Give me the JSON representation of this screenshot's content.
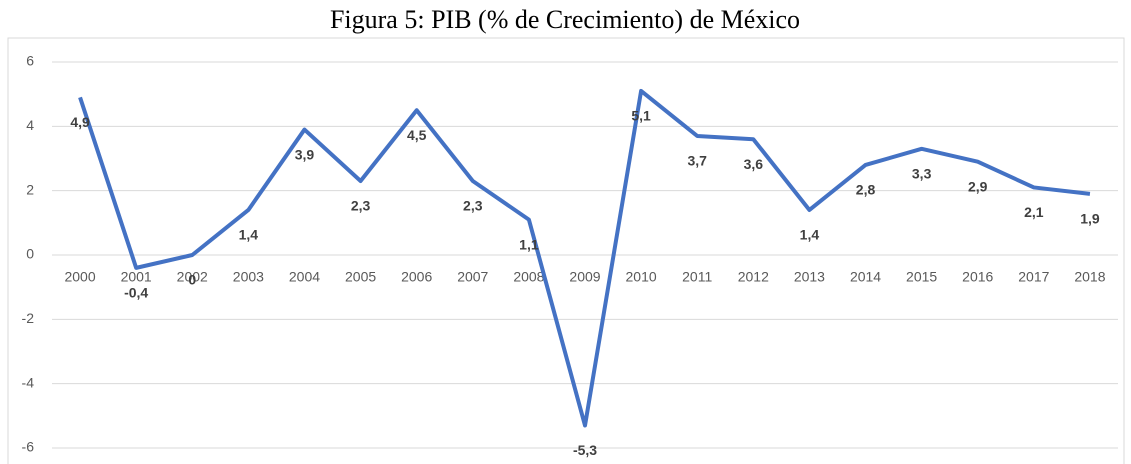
{
  "chart_data": {
    "type": "line",
    "title": "Figura 5: PIB (% de Crecimiento) de México",
    "categories": [
      "2000",
      "2001",
      "2002",
      "2003",
      "2004",
      "2005",
      "2006",
      "2007",
      "2008",
      "2009",
      "2010",
      "2011",
      "2012",
      "2013",
      "2014",
      "2015",
      "2016",
      "2017",
      "2018"
    ],
    "series": [
      {
        "name": "PIB",
        "color": "#4472c4",
        "values": [
          4.9,
          -0.4,
          0,
          1.4,
          3.9,
          2.3,
          4.5,
          2.3,
          1.1,
          -5.3,
          5.1,
          3.7,
          3.6,
          1.4,
          2.8,
          3.3,
          2.9,
          2.1,
          1.9
        ],
        "value_labels": [
          "4,9",
          "-0,4",
          "0",
          "1,4",
          "3,9",
          "2,3",
          "4,5",
          "2,3",
          "1,1",
          "-5,3",
          "5,1",
          "3,7",
          "3,6",
          "1,4",
          "2,8",
          "3,3",
          "2,9",
          "2,1",
          "1,9"
        ]
      }
    ],
    "ylim": [
      -6,
      6
    ],
    "yticks": [
      6,
      4,
      2,
      0,
      -2,
      -4,
      -6
    ],
    "grid": true
  }
}
